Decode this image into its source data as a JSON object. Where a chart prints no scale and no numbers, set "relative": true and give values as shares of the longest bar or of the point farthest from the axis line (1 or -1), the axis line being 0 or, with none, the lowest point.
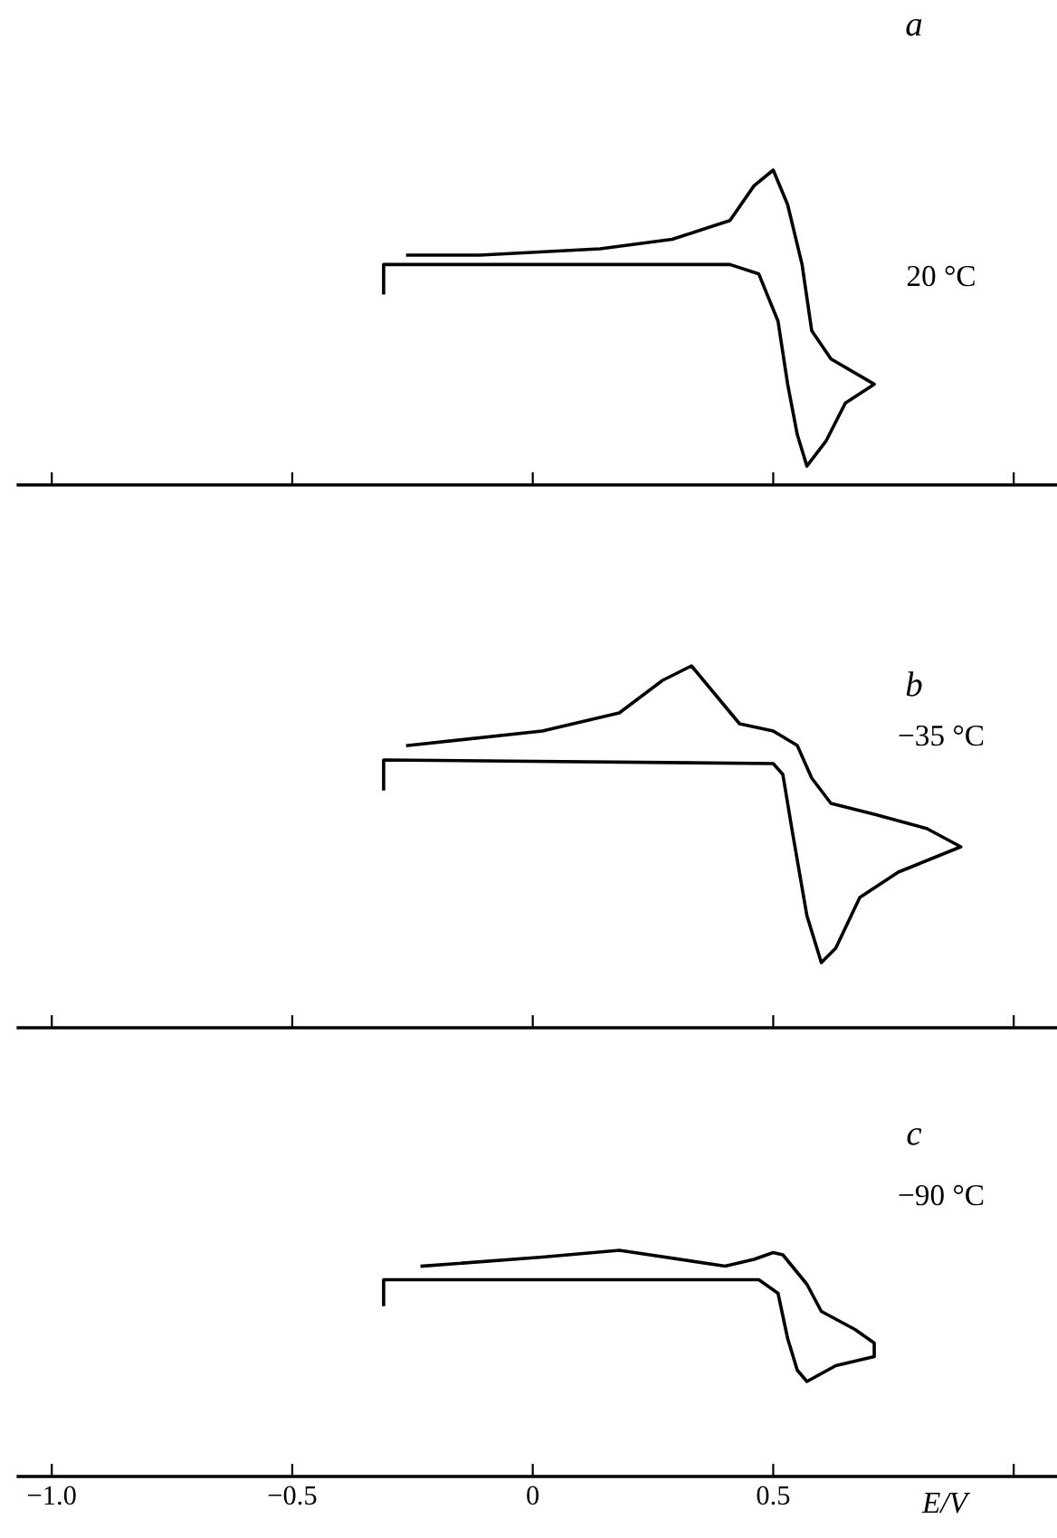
{
  "chart_data": [
    {
      "type": "line",
      "title": "a",
      "annotations": [
        "20 °C"
      ],
      "relative": true,
      "tick_labels": false,
      "xlim": [
        -1.07,
        1.09
      ],
      "xticks": [
        {
          "value": -1.0,
          "label": null
        },
        {
          "value": -0.5,
          "label": null
        },
        {
          "value": 0,
          "label": null
        },
        {
          "value": 0.5,
          "label": null
        },
        {
          "value": 1.0,
          "label": null
        }
      ],
      "grid": false,
      "legend": false,
      "series": [
        {
          "color": "#000000",
          "x": [
            -0.31,
            -0.31,
            0.41,
            0.47,
            0.51,
            0.53,
            0.55,
            0.57,
            0.61,
            0.65,
            0.71,
            0.62,
            0.58,
            0.56,
            0.53,
            0.5,
            0.46,
            0.41,
            0.29,
            0.14,
            -0.11,
            -0.26
          ],
          "values": [
            0.61,
            0.7,
            0.7,
            0.67,
            0.52,
            0.32,
            0.16,
            0.06,
            0.14,
            0.26,
            0.32,
            0.4,
            0.49,
            0.7,
            0.89,
            1.0,
            0.95,
            0.84,
            0.78,
            0.75,
            0.73,
            0.73
          ]
        }
      ]
    },
    {
      "type": "line",
      "title": "b",
      "annotations": [
        "−35 °C"
      ],
      "relative": true,
      "tick_labels": false,
      "xlim": [
        -1.07,
        1.09
      ],
      "xticks": [
        {
          "value": -1.0,
          "label": null
        },
        {
          "value": -0.5,
          "label": null
        },
        {
          "value": 0,
          "label": null
        },
        {
          "value": 0.5,
          "label": null
        },
        {
          "value": 1.0,
          "label": null
        }
      ],
      "grid": false,
      "legend": false,
      "series": [
        {
          "color": "#000000",
          "x": [
            -0.31,
            -0.31,
            0.5,
            0.52,
            0.54,
            0.57,
            0.6,
            0.63,
            0.68,
            0.76,
            0.89,
            0.82,
            0.71,
            0.62,
            0.58,
            0.55,
            0.5,
            0.43,
            0.38,
            0.33,
            0.27,
            0.18,
            0.02,
            -0.26
          ],
          "values": [
            0.66,
            0.74,
            0.73,
            0.7,
            0.54,
            0.31,
            0.18,
            0.22,
            0.36,
            0.43,
            0.5,
            0.55,
            0.59,
            0.62,
            0.69,
            0.78,
            0.82,
            0.84,
            0.92,
            1.0,
            0.96,
            0.87,
            0.82,
            0.78
          ]
        }
      ]
    },
    {
      "type": "line",
      "title": "c",
      "annotations": [
        "−90 °C"
      ],
      "relative": true,
      "tick_labels": "x",
      "xlabel": "E/V",
      "xlim": [
        -1.07,
        1.09
      ],
      "xticks": [
        {
          "value": -1.0,
          "label": "−1.0"
        },
        {
          "value": -0.5,
          "label": "−0.5"
        },
        0,
        0.5,
        {
          "value": 1.0,
          "label": null
        }
      ],
      "grid": false,
      "legend": false,
      "series": [
        {
          "color": "#000000",
          "x": [
            -0.31,
            -0.31,
            0.47,
            0.51,
            0.53,
            0.55,
            0.57,
            0.63,
            0.71,
            0.71,
            0.67,
            0.6,
            0.57,
            0.52,
            0.5,
            0.46,
            0.4,
            0.18,
            0.02,
            -0.23
          ],
          "values": [
            0.76,
            0.87,
            0.87,
            0.81,
            0.61,
            0.47,
            0.42,
            0.49,
            0.53,
            0.59,
            0.65,
            0.73,
            0.85,
            0.98,
            0.99,
            0.96,
            0.93,
            1.0,
            0.97,
            0.93
          ]
        }
      ]
    }
  ]
}
